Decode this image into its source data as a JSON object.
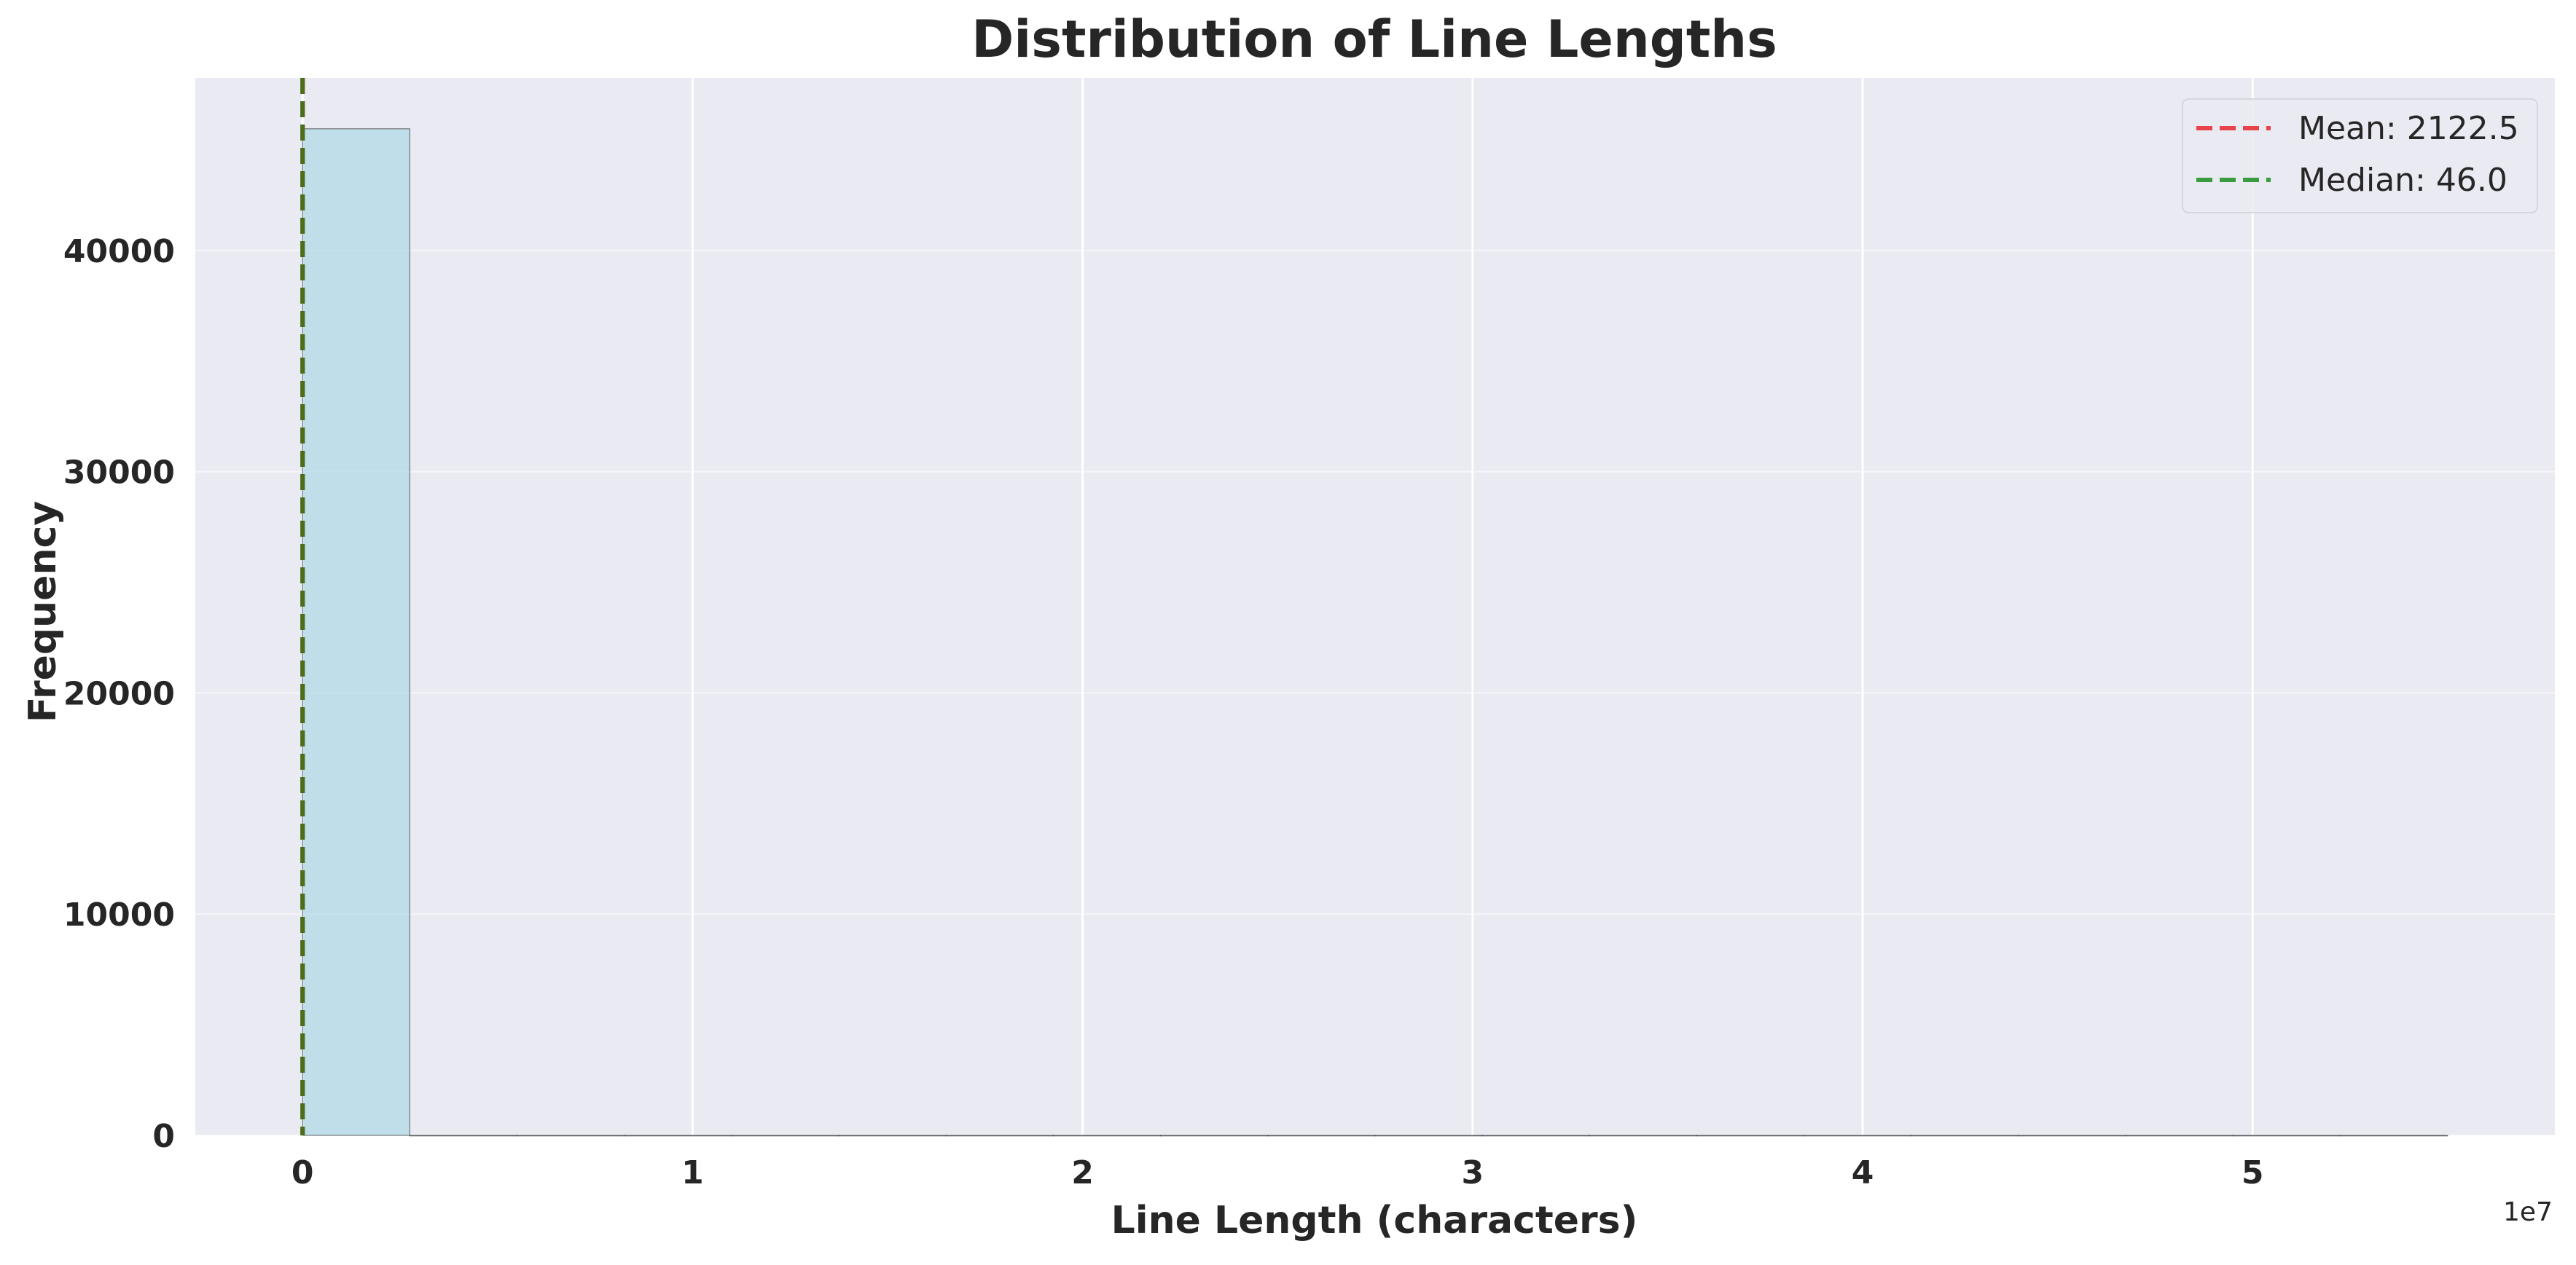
{
  "chart_data": {
    "type": "histogram",
    "title": "Distribution of Line Lengths",
    "xlabel": "Line Length (characters)",
    "ylabel": "Frequency",
    "x_offset_label": "1e7",
    "xlim": [
      -2750000,
      57750000
    ],
    "ylim": [
      0,
      47800
    ],
    "x_ticks": [
      {
        "value": 0,
        "label": "0"
      },
      {
        "value": 10000000,
        "label": "1"
      },
      {
        "value": 20000000,
        "label": "2"
      },
      {
        "value": 30000000,
        "label": "3"
      },
      {
        "value": 40000000,
        "label": "4"
      },
      {
        "value": 50000000,
        "label": "5"
      }
    ],
    "y_ticks": [
      {
        "value": 0,
        "label": "0"
      },
      {
        "value": 10000,
        "label": "10000"
      },
      {
        "value": 20000,
        "label": "20000"
      },
      {
        "value": 30000,
        "label": "30000"
      },
      {
        "value": 40000,
        "label": "40000"
      }
    ],
    "bins": [
      {
        "x0": 0,
        "x1": 2750000,
        "count": 45500
      },
      {
        "x0": 2750000,
        "x1": 5500000,
        "count": 0
      },
      {
        "x0": 5500000,
        "x1": 8250000,
        "count": 0
      },
      {
        "x0": 8250000,
        "x1": 11000000,
        "count": 0
      },
      {
        "x0": 11000000,
        "x1": 13750000,
        "count": 0
      },
      {
        "x0": 13750000,
        "x1": 16500000,
        "count": 0
      },
      {
        "x0": 16500000,
        "x1": 19250000,
        "count": 0
      },
      {
        "x0": 19250000,
        "x1": 22000000,
        "count": 0
      },
      {
        "x0": 22000000,
        "x1": 24750000,
        "count": 0
      },
      {
        "x0": 24750000,
        "x1": 27500000,
        "count": 0
      },
      {
        "x0": 27500000,
        "x1": 30250000,
        "count": 0
      },
      {
        "x0": 30250000,
        "x1": 33000000,
        "count": 0
      },
      {
        "x0": 33000000,
        "x1": 35750000,
        "count": 0
      },
      {
        "x0": 35750000,
        "x1": 38500000,
        "count": 0
      },
      {
        "x0": 38500000,
        "x1": 41250000,
        "count": 0
      },
      {
        "x0": 41250000,
        "x1": 44000000,
        "count": 0
      },
      {
        "x0": 44000000,
        "x1": 46750000,
        "count": 0
      },
      {
        "x0": 46750000,
        "x1": 49500000,
        "count": 0
      },
      {
        "x0": 49500000,
        "x1": 52250000,
        "count": 0
      },
      {
        "x0": 52250000,
        "x1": 55000000,
        "count": 0
      }
    ],
    "reference_lines": [
      {
        "name": "Mean: 2122.5",
        "value": 2122.5,
        "color": "#e8424b",
        "style": "dashed"
      },
      {
        "name": "Median: 46.0",
        "value": 46.0,
        "color": "#3a9b40",
        "style": "dashed"
      }
    ],
    "legend": {
      "position": "top-right"
    },
    "grid": true,
    "colors": {
      "background": "#eaeaf2",
      "grid": "#ffffff",
      "bar_fill": "#add8e6",
      "bar_edge": "#000000",
      "overlap_line": "#4c6e1a"
    }
  }
}
